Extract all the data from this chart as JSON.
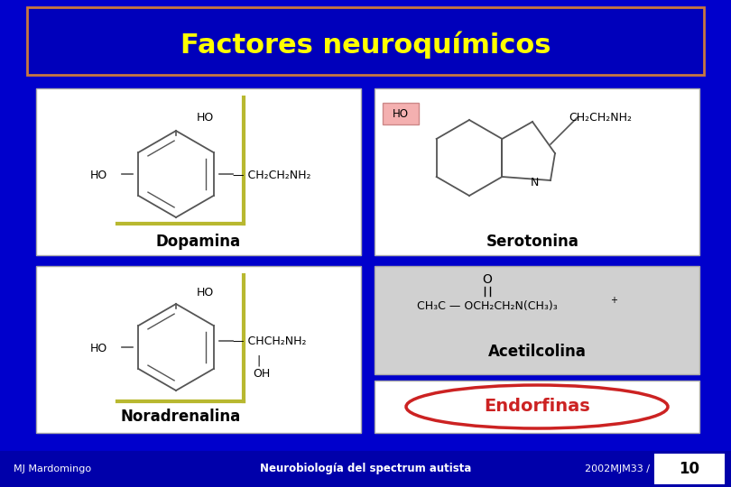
{
  "title": "Factores neuroquímicos",
  "title_color": "#FFFF00",
  "title_fontsize": 22,
  "bg_color": "#0000CC",
  "title_box_facecolor": "#0000BB",
  "title_border_color": "#c87840",
  "labels": {
    "dopamina": "Dopamina",
    "serotonina": "Serotonina",
    "acetilcolina": "Acetilcolina",
    "noradrenalina": "Noradrenalina",
    "endorfinas": "Endorfinas"
  },
  "footer_left": "MJ Mardomingo",
  "footer_center": "Neurobiología del spectrum autista",
  "footer_right": "2002MJM33 /",
  "footer_page": "10",
  "footer_color": "#ffffff",
  "footer_bg": "#0000aa",
  "endorfinas_border": "#cc2222",
  "endorfinas_text_color": "#cc2222",
  "label_fontsize": 11,
  "yellow_line": "#b8b830",
  "panel_edge": "#888888"
}
